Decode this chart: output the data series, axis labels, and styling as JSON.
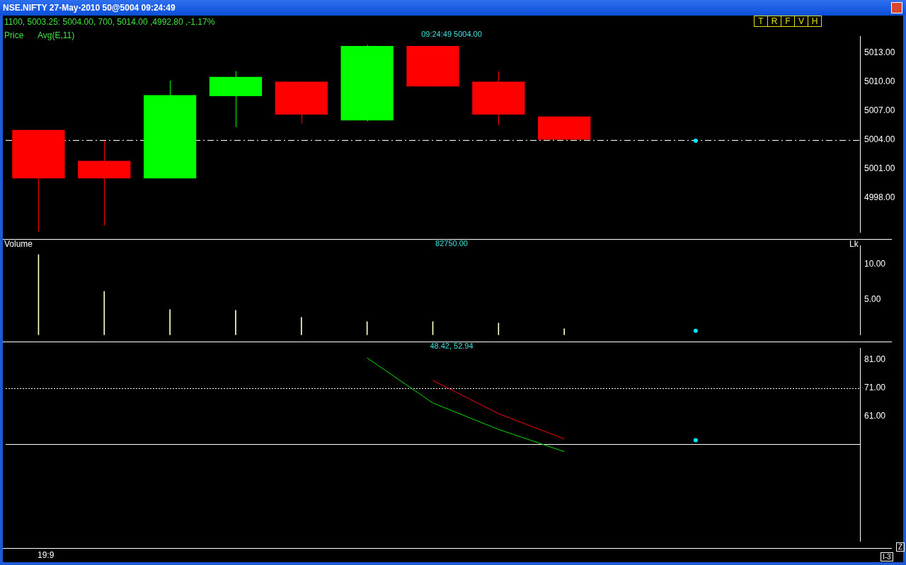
{
  "chart_data": [
    {
      "type": "candlestick",
      "title": "NSE.NIFTY 27-May-2010 50@5004 09:24:49",
      "subtitle": "1100, 5003.25: 5004.00, 700, 5014.00 ,4992.80 ,-1.17%",
      "annotations": [
        "Price",
        "Avg(E,11)",
        "09:24:49 5004.00",
        "T",
        "R",
        "F",
        "V",
        "H"
      ],
      "categories": [
        null,
        null,
        null,
        null,
        null,
        null,
        null,
        null,
        null,
        null,
        null,
        null,
        null
      ],
      "ohlc": [
        [
          5005,
          5005,
          4994.5,
          5000
        ],
        [
          5001.8,
          5003.9,
          4995.1,
          5000
        ],
        [
          5000,
          5010.1,
          5000,
          5008.6
        ],
        [
          5008.5,
          5011.1,
          5005.3,
          5010.5
        ],
        [
          5010,
          5010,
          5005.7,
          5006.6
        ],
        [
          5006,
          5013.8,
          5005.9,
          5013.7
        ],
        [
          5013.7,
          5013.7,
          5009.5,
          5009.5
        ],
        [
          5010,
          5011.1,
          5005.5,
          5006.6
        ],
        [
          5006.4,
          5006.4,
          5004,
          5004
        ],
        null,
        null,
        null,
        null
      ],
      "colors": [
        "#ff0000",
        "#ff0000",
        "#00ff00",
        "#00ff00",
        "#ff0000",
        "#00ff00",
        "#ff0000",
        "#ff0000",
        "#ff0000",
        null,
        null,
        null,
        null
      ],
      "series": [
        {
          "type": "scatter",
          "color": "#00e5ff",
          "values": [
            null,
            null,
            null,
            null,
            null,
            null,
            null,
            null,
            null,
            null,
            5003.9,
            null,
            null
          ]
        }
      ],
      "ref_lines": [
        {
          "axis": "y",
          "value": 5004,
          "color": "#ffffff",
          "line_style": "dashed"
        }
      ],
      "ylim": [
        4994.4,
        5014.7
      ],
      "yticks": [
        {
          "value": 4998,
          "label": "4998.00"
        },
        {
          "value": 5001,
          "label": "5001.00"
        },
        {
          "value": 5004,
          "label": "5004.00"
        },
        {
          "value": 5007,
          "label": "5007.00"
        },
        {
          "value": 5010,
          "label": "5010.00"
        },
        {
          "value": 5013,
          "label": "5013.00"
        }
      ],
      "tick_labels": "y",
      "legend": false
    },
    {
      "type": "bar",
      "title": "Volume",
      "ylabel": "Lk",
      "annotations": [
        "82750.00"
      ],
      "categories": [
        null,
        null,
        null,
        null,
        null,
        null,
        null,
        null,
        null,
        null,
        null,
        null,
        null
      ],
      "series": [
        {
          "type": "bar",
          "color": "#ffffc8",
          "values": [
            11.4,
            6.2,
            3.6,
            3.5,
            2.5,
            1.9,
            1.9,
            1.7,
            0.9,
            null,
            null,
            null,
            null
          ]
        },
        {
          "type": "scatter",
          "color": "#00e5ff",
          "values": [
            null,
            null,
            null,
            null,
            null,
            null,
            null,
            null,
            null,
            null,
            0.6,
            null,
            null
          ]
        }
      ],
      "ylim": [
        0,
        12.7
      ],
      "yticks": [
        {
          "value": 5,
          "label": "5.00"
        },
        {
          "value": 10,
          "label": "10.00"
        }
      ],
      "tick_labels": "y",
      "legend": false
    },
    {
      "type": "line",
      "annotations": [
        "48.42, 52.94",
        "19:9",
        "Z",
        "I-3"
      ],
      "categories": [
        null,
        null,
        null,
        null,
        null,
        null,
        null,
        null,
        null,
        null,
        null,
        null,
        null
      ],
      "series": [
        {
          "type": "line",
          "color": "#00e000",
          "values": [
            null,
            null,
            null,
            null,
            null,
            81.7,
            65.7,
            56.3,
            48.42,
            null,
            null,
            null,
            null
          ]
        },
        {
          "type": "line",
          "color": "#ff0000",
          "values": [
            null,
            null,
            null,
            null,
            null,
            null,
            73.7,
            61.9,
            52.94,
            null,
            null,
            null,
            null
          ]
        },
        {
          "type": "scatter",
          "color": "#00e5ff",
          "values": [
            null,
            null,
            null,
            null,
            null,
            null,
            null,
            null,
            null,
            null,
            52.5,
            null,
            null
          ]
        }
      ],
      "ref_lines": [
        {
          "axis": "y",
          "value": 71,
          "color": "#ffffff",
          "line_style": "dotted"
        },
        {
          "axis": "y",
          "value": 51.1,
          "color": "#ffffff",
          "line_style": "solid"
        }
      ],
      "ylim": [
        16.5,
        85.2
      ],
      "yticks": [
        {
          "value": 61,
          "label": "61.00"
        },
        {
          "value": 71,
          "label": "71.00"
        },
        {
          "value": 81,
          "label": "81.00"
        }
      ],
      "tick_labels": "y",
      "legend": false
    }
  ]
}
